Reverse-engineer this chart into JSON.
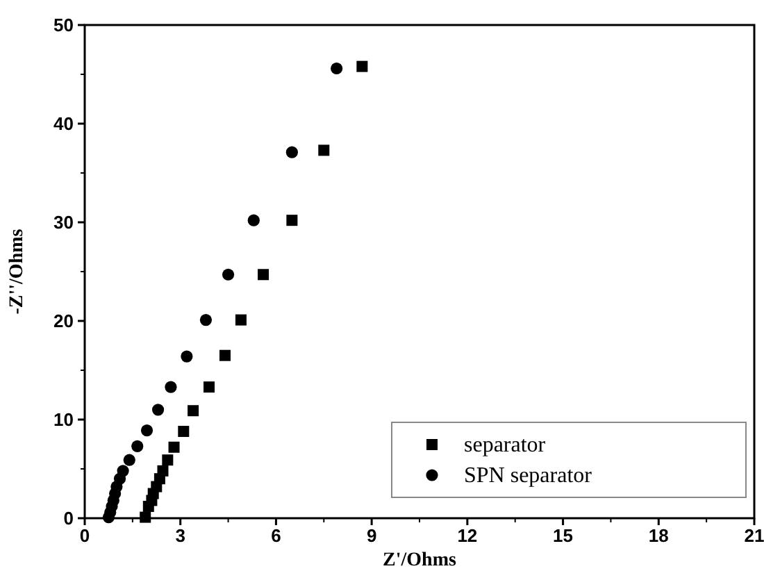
{
  "chart_data": {
    "type": "scatter",
    "xlabel": "Z'/Ohms",
    "ylabel": "-Z''/Ohms",
    "xlim": [
      0,
      21
    ],
    "ylim": [
      0,
      50
    ],
    "xticks": [
      0,
      3,
      6,
      9,
      12,
      15,
      18,
      21
    ],
    "yticks": [
      0,
      10,
      20,
      30,
      40,
      50
    ],
    "legend": "bottom right",
    "grid": false,
    "series": [
      {
        "name": "separator",
        "color": "#000000",
        "marker": "square",
        "x": [
          8.7,
          7.5,
          6.5,
          5.6,
          4.9,
          4.4,
          3.9,
          3.4,
          3.1,
          2.8,
          2.6,
          2.45,
          2.35,
          2.25,
          2.15,
          2.1,
          2.0,
          1.9
        ],
        "values": [
          45.8,
          37.3,
          30.2,
          24.7,
          20.1,
          16.5,
          13.3,
          10.9,
          8.8,
          7.2,
          5.9,
          4.8,
          4.0,
          3.2,
          2.5,
          1.8,
          1.2,
          0.1
        ]
      },
      {
        "name": "SPN separator",
        "color": "#000000",
        "marker": "circle",
        "x": [
          7.9,
          6.5,
          5.3,
          4.5,
          3.8,
          3.2,
          2.7,
          2.3,
          1.95,
          1.65,
          1.4,
          1.2,
          1.1,
          1.0,
          0.95,
          0.9,
          0.85,
          0.8,
          0.75
        ],
        "values": [
          45.6,
          37.1,
          30.2,
          24.7,
          20.1,
          16.4,
          13.3,
          11.0,
          8.9,
          7.3,
          5.9,
          4.8,
          4.0,
          3.2,
          2.5,
          1.8,
          1.2,
          0.6,
          0.1
        ]
      }
    ]
  }
}
